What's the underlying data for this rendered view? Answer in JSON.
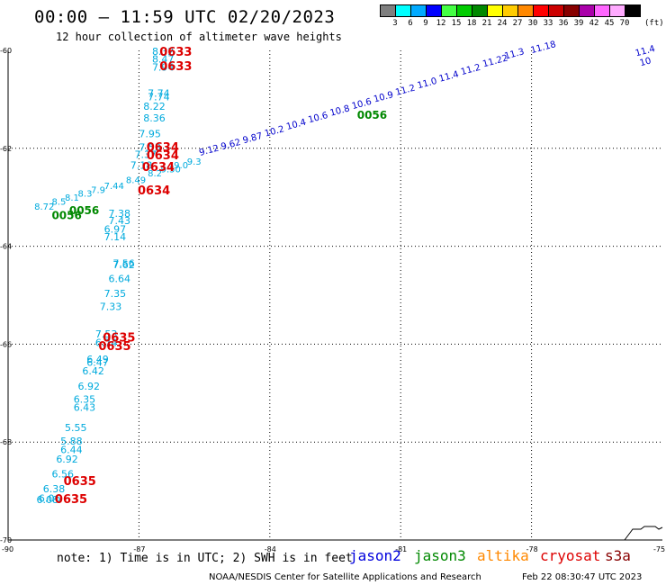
{
  "header": {
    "title": "00:00 — 11:59 UTC 02/20/2023",
    "subtitle": "12 hour collection of altimeter wave heights"
  },
  "colorbar": {
    "colors": [
      "#7f7f7f",
      "#00ffff",
      "#00aaff",
      "#0000ff",
      "#44ff44",
      "#00cc00",
      "#008800",
      "#ffff00",
      "#ffcc00",
      "#ff8800",
      "#ff0000",
      "#cc0000",
      "#880000",
      "#aa00aa",
      "#ff66ff",
      "#ffaaff",
      "#000000"
    ],
    "labels": [
      "3",
      "6",
      "9",
      "12",
      "15",
      "18",
      "21",
      "24",
      "27",
      "30",
      "33",
      "36",
      "39",
      "42",
      "45",
      "70"
    ],
    "unit": "(ft)"
  },
  "axes": {
    "lat_labels": [
      "-60",
      "-62",
      "-64",
      "-66",
      "-68",
      "-70"
    ],
    "lon_labels": [
      "-90",
      "-87",
      "-84",
      "-81",
      "-78",
      "-75"
    ]
  },
  "footer": {
    "note": "note:  1) Time is in UTC; 2) SWH is in feet",
    "satellites": [
      {
        "name": "jason2",
        "color": "#0000dd"
      },
      {
        "name": "jason3",
        "color": "#008800"
      },
      {
        "name": "altika",
        "color": "#ff8800"
      },
      {
        "name": "cryosat",
        "color": "#dd0000"
      },
      {
        "name": "s3a",
        "color": "#880000"
      }
    ],
    "credit": "NOAA/NESDIS Center for Satellite Applications and Research",
    "timestamp": "Feb 22 08:30:47 UTC 2023"
  },
  "map_data": {
    "track_cyan": [
      {
        "lon": -86.7,
        "lat": -60.09,
        "swh": "8.32"
      },
      {
        "lon": -86.7,
        "lat": -60.25,
        "swh": "8.47"
      },
      {
        "lon": -86.7,
        "lat": -60.41,
        "swh": "7.94"
      },
      {
        "lon": -86.8,
        "lat": -60.95,
        "swh": "7.74"
      },
      {
        "lon": -86.8,
        "lat": -61.02,
        "swh": "7.74"
      },
      {
        "lon": -86.9,
        "lat": -61.21,
        "swh": "8.22"
      },
      {
        "lon": -86.9,
        "lat": -61.45,
        "swh": "8.36"
      },
      {
        "lon": -87.0,
        "lat": -61.77,
        "swh": "7.95"
      },
      {
        "lon": -87.0,
        "lat": -62.05,
        "swh": "7.53"
      },
      {
        "lon": -87.1,
        "lat": -62.2,
        "swh": "7.37"
      },
      {
        "lon": -87.2,
        "lat": -62.42,
        "swh": "7.18"
      },
      {
        "lon": -87.7,
        "lat": -63.4,
        "swh": "7.38"
      },
      {
        "lon": -87.7,
        "lat": -63.55,
        "swh": "7.43"
      },
      {
        "lon": -87.8,
        "lat": -63.72,
        "swh": "6.97"
      },
      {
        "lon": -87.8,
        "lat": -63.88,
        "swh": "7.14"
      },
      {
        "lon": -87.6,
        "lat": -64.42,
        "swh": "7.56"
      },
      {
        "lon": -87.6,
        "lat": -64.45,
        "swh": "7.62"
      },
      {
        "lon": -87.7,
        "lat": -64.73,
        "swh": "6.64"
      },
      {
        "lon": -87.8,
        "lat": -65.04,
        "swh": "7.35"
      },
      {
        "lon": -87.9,
        "lat": -65.3,
        "swh": "7.33"
      },
      {
        "lon": -88.0,
        "lat": -65.86,
        "swh": "7.53"
      },
      {
        "lon": -88.0,
        "lat": -66.04,
        "swh": "6.74"
      },
      {
        "lon": -88.2,
        "lat": -66.38,
        "swh": "6.49"
      },
      {
        "lon": -88.2,
        "lat": -66.44,
        "swh": "6.47"
      },
      {
        "lon": -88.3,
        "lat": -66.62,
        "swh": "6.42"
      },
      {
        "lon": -88.4,
        "lat": -66.93,
        "swh": "6.92"
      },
      {
        "lon": -88.5,
        "lat": -67.2,
        "swh": "6.35"
      },
      {
        "lon": -88.5,
        "lat": -67.36,
        "swh": "6.43"
      },
      {
        "lon": -88.7,
        "lat": -67.78,
        "swh": "5.55"
      },
      {
        "lon": -88.8,
        "lat": -68.05,
        "swh": "5.88"
      },
      {
        "lon": -88.8,
        "lat": -68.23,
        "swh": "6.44"
      },
      {
        "lon": -88.9,
        "lat": -68.42,
        "swh": "6.92"
      },
      {
        "lon": -89.0,
        "lat": -68.72,
        "swh": "6.56"
      },
      {
        "lon": -89.2,
        "lat": -69.03,
        "swh": "6.38"
      },
      {
        "lon": -89.3,
        "lat": -69.22,
        "swh": "6.06"
      },
      {
        "lon": -89.35,
        "lat": -69.25,
        "swh": "6.08"
      }
    ],
    "track_cyan_diag": [
      {
        "lon": -89.4,
        "lat": -63.25,
        "swh": "8.72"
      },
      {
        "lon": -89.0,
        "lat": -63.15,
        "swh": "8.5"
      },
      {
        "lon": -88.7,
        "lat": -63.07,
        "swh": "8.1"
      },
      {
        "lon": -88.4,
        "lat": -62.99,
        "swh": "8.3"
      },
      {
        "lon": -88.1,
        "lat": -62.91,
        "swh": "7.9"
      },
      {
        "lon": -87.8,
        "lat": -62.83,
        "swh": "7.44"
      },
      {
        "lon": -87.3,
        "lat": -62.71,
        "swh": "8.49"
      },
      {
        "lon": -86.8,
        "lat": -62.57,
        "swh": "8.2"
      },
      {
        "lon": -86.5,
        "lat": -62.49,
        "swh": "9.50"
      },
      {
        "lon": -86.2,
        "lat": -62.41,
        "swh": "9.0"
      },
      {
        "lon": -85.9,
        "lat": -62.33,
        "swh": "9.3"
      }
    ],
    "track_blue": [
      {
        "lon": -85.6,
        "lat": -62.15,
        "swh": "9.12"
      },
      {
        "lon": -85.1,
        "lat": -62.03,
        "swh": "9.62"
      },
      {
        "lon": -84.6,
        "lat": -61.9,
        "swh": "9.87"
      },
      {
        "lon": -84.1,
        "lat": -61.76,
        "swh": "10.2"
      },
      {
        "lon": -83.6,
        "lat": -61.62,
        "swh": "10.4"
      },
      {
        "lon": -83.1,
        "lat": -61.48,
        "swh": "10.6"
      },
      {
        "lon": -82.6,
        "lat": -61.34,
        "swh": "10.8"
      },
      {
        "lon": -82.1,
        "lat": -61.2,
        "swh": "10.6"
      },
      {
        "lon": -81.6,
        "lat": -61.06,
        "swh": "10.9"
      },
      {
        "lon": -81.1,
        "lat": -60.92,
        "swh": "11.2"
      },
      {
        "lon": -80.6,
        "lat": -60.78,
        "swh": "11.0"
      },
      {
        "lon": -80.1,
        "lat": -60.64,
        "swh": "11.4"
      },
      {
        "lon": -79.6,
        "lat": -60.5,
        "swh": "11.2"
      },
      {
        "lon": -79.1,
        "lat": -60.34,
        "swh": "11.22"
      },
      {
        "lon": -78.6,
        "lat": -60.18,
        "swh": "11.3"
      },
      {
        "lon": -78.0,
        "lat": -60.06,
        "swh": "11.18"
      },
      {
        "lon": -75.6,
        "lat": -60.12,
        "swh": "11.4"
      },
      {
        "lon": -75.5,
        "lat": -60.32,
        "swh": "10"
      }
    ],
    "red_labels": [
      {
        "lon": -86.9,
        "lat": -60.11,
        "text": "0633"
      },
      {
        "lon": -86.9,
        "lat": -60.4,
        "text": "0633"
      },
      {
        "lon": -87.2,
        "lat": -62.06,
        "text": "0634"
      },
      {
        "lon": -87.2,
        "lat": -62.22,
        "text": "0634"
      },
      {
        "lon": -87.3,
        "lat": -62.46,
        "text": "0634"
      },
      {
        "lon": -87.4,
        "lat": -62.94,
        "text": "0634"
      },
      {
        "lon": -88.2,
        "lat": -65.95,
        "text": "0635"
      },
      {
        "lon": -88.3,
        "lat": -66.12,
        "text": "0635"
      },
      {
        "lon": -89.1,
        "lat": -68.88,
        "text": "0635"
      },
      {
        "lon": -89.3,
        "lat": -69.25,
        "text": "0635"
      }
    ],
    "green_labels": [
      {
        "lon": -89.0,
        "lat": -63.45,
        "text": "0056"
      },
      {
        "lon": -88.6,
        "lat": -63.35,
        "text": "0056"
      },
      {
        "lon": -82.0,
        "lat": -61.4,
        "text": "0056"
      }
    ]
  }
}
